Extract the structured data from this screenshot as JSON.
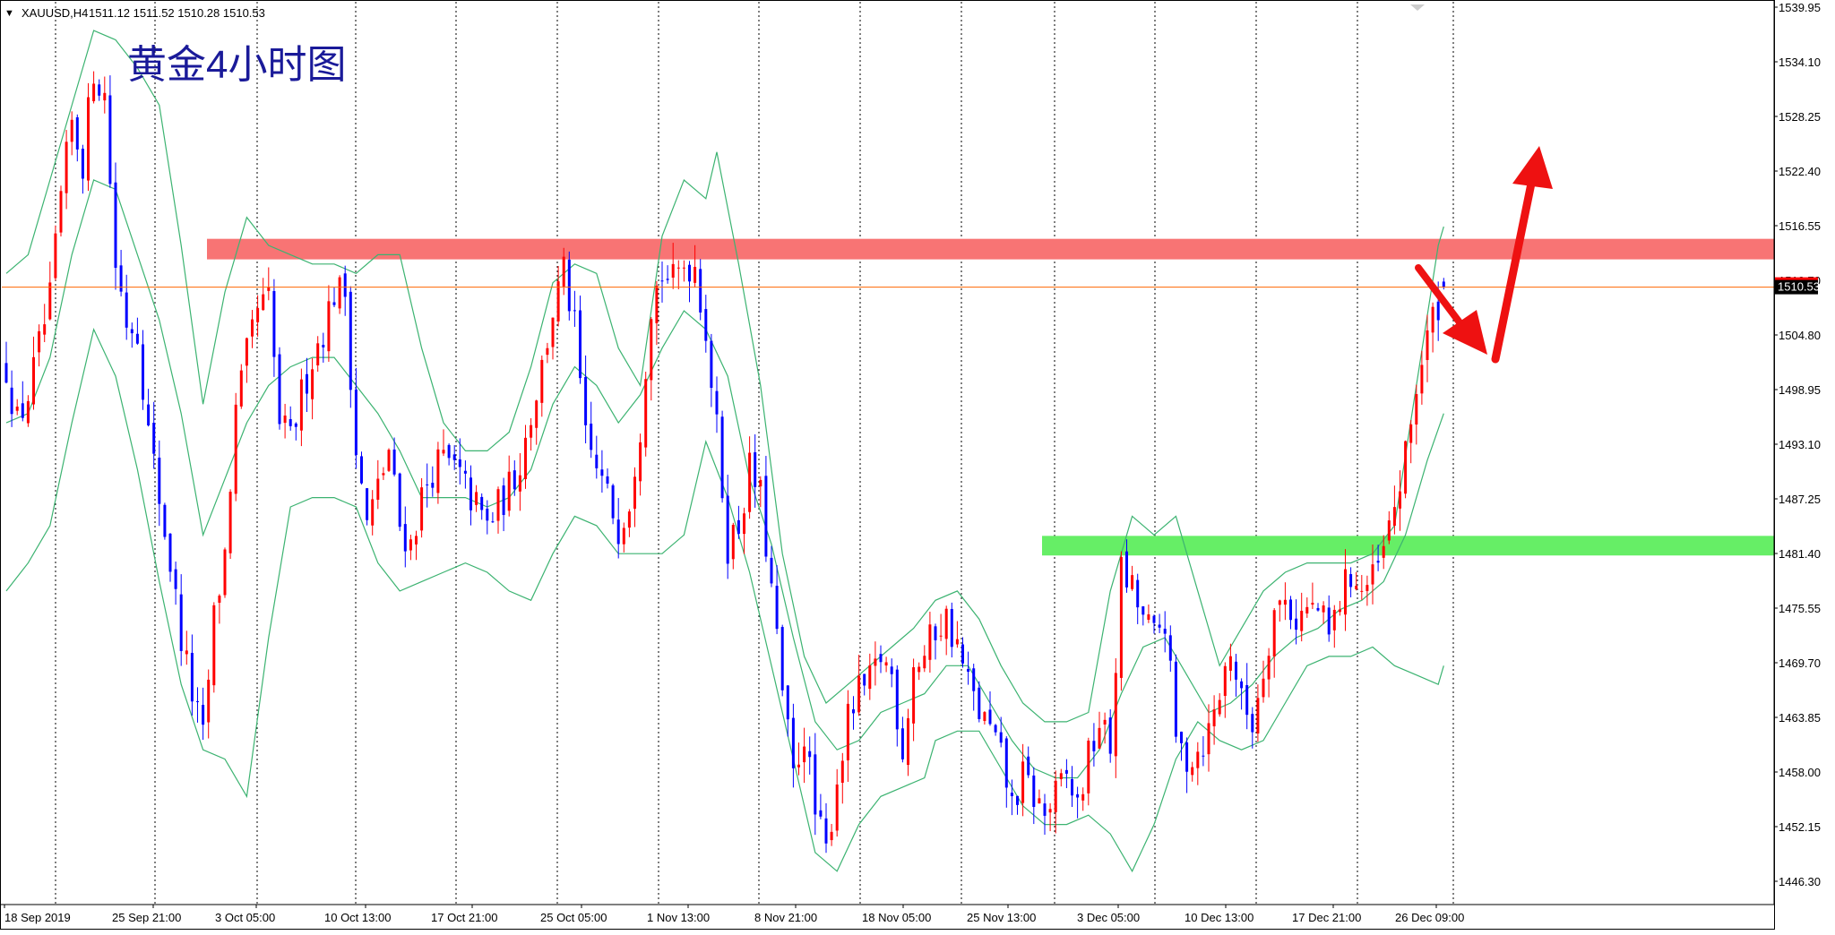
{
  "header": {
    "marker": "▼",
    "symbol": "XAUUSD,H4",
    "ohlc": "1511.12 1511.52 1510.28 1510.53"
  },
  "annotation": {
    "title_cn": "黄金4小时图"
  },
  "current_price_label": "1510.53",
  "colors": {
    "bull": "#ff0000",
    "bear": "#0000ff",
    "bollinger": "#3cb371",
    "resistance_zone": "#f87474",
    "support_zone": "#66ee66",
    "arrow": "#ee1111",
    "price_line": "#ff6600",
    "title": "#1a1a99",
    "grid": "#000000"
  },
  "chart_data": {
    "type": "candlestick",
    "instrument": "XAUUSD",
    "timeframe": "H4",
    "ylim": [
      1442.5,
      1540.5
    ],
    "y_ticks": [
      "1539.95",
      "1534.10",
      "1528.25",
      "1522.40",
      "1516.55",
      "1510.70",
      "1504.80",
      "1498.95",
      "1493.10",
      "1487.25",
      "1481.40",
      "1475.55",
      "1469.70",
      "1463.85",
      "1458.00",
      "1452.15",
      "1446.30"
    ],
    "x_ticks": [
      "18 Sep 2019",
      "25 Sep 21:00",
      "3 Oct 05:00",
      "10 Oct 13:00",
      "17 Oct 21:00",
      "25 Oct 05:00",
      "1 Nov 13:00",
      "8 Nov 21:00",
      "18 Nov 05:00",
      "25 Nov 13:00",
      "3 Dec 05:00",
      "10 Dec 13:00",
      "17 Dec 21:00",
      "26 Dec 09:00"
    ],
    "close_path": [
      [
        0,
        1502
      ],
      [
        2,
        1496
      ],
      [
        4,
        1499
      ],
      [
        6,
        1504
      ],
      [
        8,
        1509
      ],
      [
        10,
        1520
      ],
      [
        12,
        1528
      ],
      [
        14,
        1524
      ],
      [
        16,
        1534
      ],
      [
        18,
        1531
      ],
      [
        20,
        1513
      ],
      [
        22,
        1507
      ],
      [
        24,
        1506
      ],
      [
        26,
        1495
      ],
      [
        28,
        1488
      ],
      [
        30,
        1481
      ],
      [
        32,
        1473
      ],
      [
        34,
        1467
      ],
      [
        36,
        1462
      ],
      [
        38,
        1475
      ],
      [
        40,
        1482
      ],
      [
        42,
        1497
      ],
      [
        44,
        1503
      ],
      [
        46,
        1508
      ],
      [
        48,
        1509
      ],
      [
        50,
        1496
      ],
      [
        52,
        1494
      ],
      [
        54,
        1499
      ],
      [
        56,
        1503
      ],
      [
        58,
        1506
      ],
      [
        60,
        1510
      ],
      [
        62,
        1510
      ],
      [
        64,
        1493
      ],
      [
        66,
        1485
      ],
      [
        68,
        1489
      ],
      [
        70,
        1493
      ],
      [
        72,
        1485
      ],
      [
        74,
        1483
      ],
      [
        76,
        1488
      ],
      [
        78,
        1491
      ],
      [
        80,
        1492
      ],
      [
        82,
        1491
      ],
      [
        84,
        1489
      ],
      [
        86,
        1487
      ],
      [
        88,
        1485
      ],
      [
        90,
        1487
      ],
      [
        92,
        1489
      ],
      [
        94,
        1492
      ],
      [
        96,
        1497
      ],
      [
        98,
        1502
      ],
      [
        100,
        1508
      ],
      [
        102,
        1512
      ],
      [
        104,
        1506
      ],
      [
        106,
        1494
      ],
      [
        108,
        1491
      ],
      [
        110,
        1488
      ],
      [
        112,
        1485
      ],
      [
        114,
        1488
      ],
      [
        116,
        1496
      ],
      [
        118,
        1509
      ],
      [
        120,
        1512
      ],
      [
        122,
        1511
      ],
      [
        124,
        1513
      ],
      [
        126,
        1513
      ],
      [
        128,
        1506
      ],
      [
        130,
        1495
      ],
      [
        132,
        1483
      ],
      [
        134,
        1485
      ],
      [
        136,
        1491
      ],
      [
        138,
        1488
      ],
      [
        140,
        1478
      ],
      [
        142,
        1467
      ],
      [
        144,
        1458
      ],
      [
        146,
        1463
      ],
      [
        148,
        1454
      ],
      [
        150,
        1450
      ],
      [
        152,
        1458
      ],
      [
        154,
        1464
      ],
      [
        156,
        1467
      ],
      [
        158,
        1468
      ],
      [
        160,
        1471
      ],
      [
        162,
        1469
      ],
      [
        164,
        1461
      ],
      [
        166,
        1470
      ],
      [
        168,
        1471
      ],
      [
        170,
        1474
      ],
      [
        172,
        1475
      ],
      [
        174,
        1472
      ],
      [
        176,
        1468
      ],
      [
        178,
        1465
      ],
      [
        180,
        1463
      ],
      [
        182,
        1460
      ],
      [
        184,
        1455
      ],
      [
        186,
        1458
      ],
      [
        188,
        1456
      ],
      [
        190,
        1454
      ],
      [
        192,
        1456
      ],
      [
        194,
        1458
      ],
      [
        196,
        1455
      ],
      [
        198,
        1460
      ],
      [
        200,
        1464
      ],
      [
        202,
        1461
      ],
      [
        204,
        1480
      ],
      [
        206,
        1478
      ],
      [
        208,
        1475
      ],
      [
        210,
        1473
      ],
      [
        212,
        1475
      ],
      [
        214,
        1462
      ],
      [
        216,
        1460
      ],
      [
        218,
        1461
      ],
      [
        220,
        1463
      ],
      [
        222,
        1467
      ],
      [
        224,
        1472
      ],
      [
        226,
        1466
      ],
      [
        228,
        1464
      ],
      [
        230,
        1470
      ],
      [
        232,
        1476
      ],
      [
        234,
        1477
      ],
      [
        236,
        1475
      ],
      [
        238,
        1476
      ],
      [
        240,
        1476
      ],
      [
        242,
        1473
      ],
      [
        244,
        1477
      ],
      [
        246,
        1480
      ],
      [
        248,
        1478
      ],
      [
        250,
        1479
      ],
      [
        252,
        1482
      ],
      [
        254,
        1487
      ],
      [
        256,
        1492
      ],
      [
        258,
        1500
      ],
      [
        260,
        1505
      ],
      [
        262,
        1509
      ],
      [
        263,
        1510.53
      ]
    ],
    "bollinger_bands": {
      "upper": [
        [
          0,
          1512
        ],
        [
          4,
          1514
        ],
        [
          8,
          1522
        ],
        [
          12,
          1530
        ],
        [
          16,
          1538
        ],
        [
          20,
          1537
        ],
        [
          24,
          1534
        ],
        [
          28,
          1530
        ],
        [
          32,
          1515
        ],
        [
          36,
          1498
        ],
        [
          40,
          1510
        ],
        [
          44,
          1518
        ],
        [
          48,
          1515
        ],
        [
          52,
          1514
        ],
        [
          56,
          1513
        ],
        [
          60,
          1513
        ],
        [
          64,
          1512
        ],
        [
          68,
          1514
        ],
        [
          72,
          1514
        ],
        [
          76,
          1504
        ],
        [
          80,
          1496
        ],
        [
          84,
          1493
        ],
        [
          88,
          1493
        ],
        [
          92,
          1495
        ],
        [
          96,
          1502
        ],
        [
          100,
          1511
        ],
        [
          104,
          1513
        ],
        [
          108,
          1512
        ],
        [
          112,
          1504
        ],
        [
          116,
          1500
        ],
        [
          120,
          1516
        ],
        [
          124,
          1522
        ],
        [
          128,
          1520
        ],
        [
          130,
          1525
        ],
        [
          134,
          1513
        ],
        [
          138,
          1500
        ],
        [
          142,
          1482
        ],
        [
          146,
          1471
        ],
        [
          150,
          1466
        ],
        [
          154,
          1468
        ],
        [
          158,
          1470
        ],
        [
          162,
          1472
        ],
        [
          166,
          1474
        ],
        [
          170,
          1477
        ],
        [
          174,
          1478
        ],
        [
          178,
          1475
        ],
        [
          182,
          1470
        ],
        [
          186,
          1466
        ],
        [
          190,
          1464
        ],
        [
          194,
          1464
        ],
        [
          198,
          1465
        ],
        [
          202,
          1478
        ],
        [
          206,
          1486
        ],
        [
          210,
          1484
        ],
        [
          214,
          1486
        ],
        [
          218,
          1478
        ],
        [
          222,
          1470
        ],
        [
          226,
          1474
        ],
        [
          230,
          1478
        ],
        [
          234,
          1480
        ],
        [
          238,
          1481
        ],
        [
          242,
          1481
        ],
        [
          246,
          1481
        ],
        [
          250,
          1482
        ],
        [
          254,
          1485
        ],
        [
          258,
          1500
        ],
        [
          262,
          1515
        ],
        [
          263,
          1517
        ]
      ],
      "middle": [
        [
          0,
          1496
        ],
        [
          4,
          1497
        ],
        [
          8,
          1503
        ],
        [
          12,
          1514
        ],
        [
          16,
          1522
        ],
        [
          20,
          1521
        ],
        [
          24,
          1514
        ],
        [
          28,
          1507
        ],
        [
          32,
          1497
        ],
        [
          36,
          1484
        ],
        [
          40,
          1490
        ],
        [
          44,
          1496
        ],
        [
          48,
          1500
        ],
        [
          52,
          1502
        ],
        [
          56,
          1503
        ],
        [
          60,
          1503
        ],
        [
          64,
          1500
        ],
        [
          68,
          1497
        ],
        [
          72,
          1493
        ],
        [
          76,
          1488
        ],
        [
          80,
          1488
        ],
        [
          84,
          1488
        ],
        [
          88,
          1487
        ],
        [
          92,
          1488
        ],
        [
          96,
          1491
        ],
        [
          100,
          1498
        ],
        [
          104,
          1502
        ],
        [
          108,
          1500
        ],
        [
          112,
          1496
        ],
        [
          116,
          1499
        ],
        [
          120,
          1504
        ],
        [
          124,
          1508
        ],
        [
          128,
          1506
        ],
        [
          132,
          1501
        ],
        [
          136,
          1490
        ],
        [
          140,
          1483
        ],
        [
          144,
          1473
        ],
        [
          148,
          1464
        ],
        [
          152,
          1461
        ],
        [
          156,
          1462
        ],
        [
          160,
          1465
        ],
        [
          164,
          1466
        ],
        [
          168,
          1467
        ],
        [
          172,
          1470
        ],
        [
          176,
          1470
        ],
        [
          180,
          1466
        ],
        [
          184,
          1462
        ],
        [
          188,
          1459
        ],
        [
          192,
          1458
        ],
        [
          196,
          1458
        ],
        [
          200,
          1461
        ],
        [
          204,
          1467
        ],
        [
          208,
          1472
        ],
        [
          212,
          1473
        ],
        [
          216,
          1469
        ],
        [
          220,
          1465
        ],
        [
          224,
          1466
        ],
        [
          228,
          1468
        ],
        [
          232,
          1471
        ],
        [
          236,
          1473
        ],
        [
          240,
          1474
        ],
        [
          244,
          1476
        ],
        [
          248,
          1477
        ],
        [
          252,
          1479
        ],
        [
          256,
          1484
        ],
        [
          260,
          1492
        ],
        [
          263,
          1497
        ]
      ],
      "lower": [
        [
          0,
          1478
        ],
        [
          4,
          1481
        ],
        [
          8,
          1485
        ],
        [
          12,
          1496
        ],
        [
          16,
          1506
        ],
        [
          20,
          1501
        ],
        [
          24,
          1491
        ],
        [
          28,
          1479
        ],
        [
          32,
          1468
        ],
        [
          36,
          1461
        ],
        [
          40,
          1460
        ],
        [
          44,
          1456
        ],
        [
          48,
          1473
        ],
        [
          52,
          1487
        ],
        [
          56,
          1488
        ],
        [
          60,
          1488
        ],
        [
          64,
          1487
        ],
        [
          68,
          1481
        ],
        [
          72,
          1478
        ],
        [
          76,
          1479
        ],
        [
          80,
          1480
        ],
        [
          84,
          1481
        ],
        [
          88,
          1480
        ],
        [
          92,
          1478
        ],
        [
          96,
          1477
        ],
        [
          100,
          1482
        ],
        [
          104,
          1486
        ],
        [
          108,
          1485
        ],
        [
          112,
          1482
        ],
        [
          116,
          1482
        ],
        [
          120,
          1482
        ],
        [
          124,
          1484
        ],
        [
          128,
          1494
        ],
        [
          132,
          1488
        ],
        [
          136,
          1480
        ],
        [
          140,
          1470
        ],
        [
          144,
          1460
        ],
        [
          148,
          1450
        ],
        [
          152,
          1448
        ],
        [
          156,
          1453
        ],
        [
          160,
          1456
        ],
        [
          164,
          1457
        ],
        [
          168,
          1458
        ],
        [
          170,
          1462
        ],
        [
          174,
          1463
        ],
        [
          178,
          1463
        ],
        [
          182,
          1459
        ],
        [
          186,
          1455
        ],
        [
          190,
          1453
        ],
        [
          194,
          1453
        ],
        [
          198,
          1454
        ],
        [
          202,
          1452
        ],
        [
          206,
          1448
        ],
        [
          210,
          1453
        ],
        [
          214,
          1460
        ],
        [
          218,
          1464
        ],
        [
          222,
          1462
        ],
        [
          226,
          1461
        ],
        [
          230,
          1462
        ],
        [
          234,
          1466
        ],
        [
          238,
          1470
        ],
        [
          242,
          1471
        ],
        [
          246,
          1471
        ],
        [
          250,
          1472
        ],
        [
          254,
          1470
        ],
        [
          258,
          1469
        ],
        [
          262,
          1468
        ],
        [
          263,
          1470
        ]
      ]
    },
    "zones": {
      "resistance": [
        1513.5,
        1515.7
      ],
      "support": [
        1481.8,
        1483.9
      ]
    },
    "current_price": 1510.53
  }
}
